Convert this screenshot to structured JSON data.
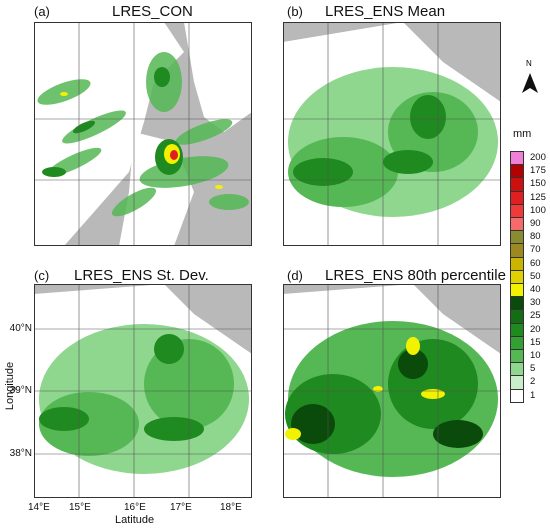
{
  "panels": [
    {
      "tag": "(a)",
      "title": "LRES_CON"
    },
    {
      "tag": "(b)",
      "title": "LRES_ENS Mean"
    },
    {
      "tag": "(c)",
      "title": "LRES_ENS St. Dev."
    },
    {
      "tag": "(d)",
      "title": "LRES_ENS 80th percentile"
    }
  ],
  "axes": {
    "y_label": "Longitude",
    "x_label": "Latitude",
    "lat_ticks": [
      "40°N",
      "39°N",
      "38°N"
    ],
    "lon_ticks": [
      "14°E",
      "15°E",
      "16°E",
      "17°E",
      "18°E"
    ]
  },
  "north": {
    "label": "N"
  },
  "colorbar": {
    "unit": "mm",
    "labels": [
      "200",
      "175",
      "150",
      "125",
      "100",
      "90",
      "80",
      "70",
      "60",
      "50",
      "40",
      "30",
      "25",
      "20",
      "15",
      "10",
      "5",
      "2",
      "1"
    ],
    "colors": [
      "#f07fd8",
      "#b30000",
      "#cc1010",
      "#e02020",
      "#f03a3a",
      "#f56a6a",
      "#8a8a30",
      "#9c8a20",
      "#c9b400",
      "#e0d000",
      "#f2f200",
      "#0a4a0a",
      "#146d14",
      "#1f8a1f",
      "#33a033",
      "#55b855",
      "#8fd68f",
      "#c9ecc9",
      "#ffffff"
    ]
  }
}
